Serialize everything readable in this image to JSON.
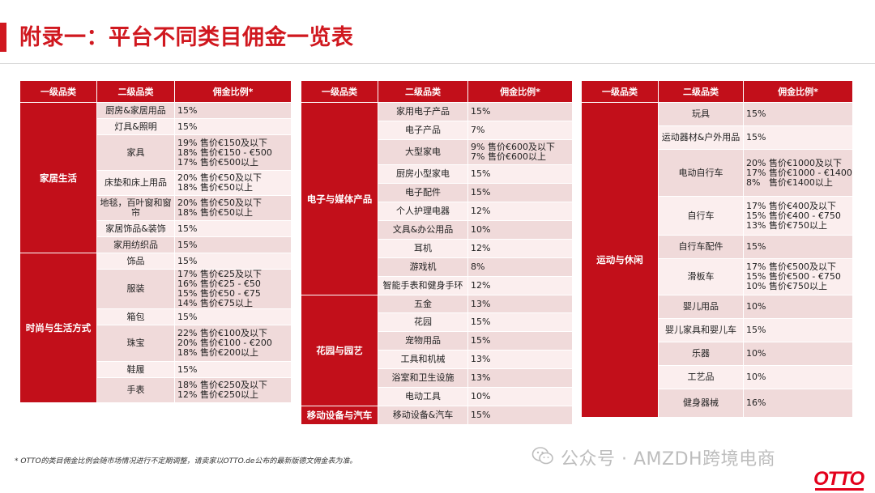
{
  "page": {
    "title": "附录一：平台不同类目佣金一览表",
    "footnote": "* OTTO的类目佣金比例会随市场情况进行不定期调整，请卖家以OTTO.de公布的最新版德文佣金表为准。",
    "watermark": "公众号 · AMZDH跨境电商",
    "brand_logo": "OTTO",
    "accent_color": "#c20f1a"
  },
  "headers": [
    "一级品类",
    "二级品类",
    "佣金比例*"
  ],
  "tables": [
    {
      "groups": [
        {
          "name": "家居生活",
          "rows": [
            {
              "sub": "厨房&家居用品",
              "rate": "15%"
            },
            {
              "sub": "灯具&照明",
              "rate": "15%"
            },
            {
              "sub": "家具",
              "rate": "19% 售价€150及以下\n18% 售价€150 - €500\n17% 售价€500以上"
            },
            {
              "sub": "床垫和床上用品",
              "rate": "20% 售价€50及以下\n18% 售价€50以上"
            },
            {
              "sub": "地毯，百叶窗和窗\n帘",
              "rate": "20% 售价€50及以下\n18% 售价€50以上"
            },
            {
              "sub": "家居饰品&装饰",
              "rate": "15%"
            },
            {
              "sub": "家用纺织品",
              "rate": "15%"
            }
          ]
        },
        {
          "name": "时尚与生活方式",
          "rows": [
            {
              "sub": "饰品",
              "rate": "15%"
            },
            {
              "sub": "服装",
              "rate": "17% 售价€25及以下\n16% 售价€25 - €50\n15% 售价€50 - €75\n14% 售价€75以上"
            },
            {
              "sub": "箱包",
              "rate": "15%"
            },
            {
              "sub": "珠宝",
              "rate": "22% 售价€100及以下\n20% 售价€100 - €200\n18% 售价€200以上"
            },
            {
              "sub": "鞋履",
              "rate": "15%"
            },
            {
              "sub": "手表",
              "rate": "18% 售价€250及以下\n12% 售价€250以上"
            }
          ]
        }
      ]
    },
    {
      "groups": [
        {
          "name": "电子与媒体产品",
          "rows": [
            {
              "sub": "家用电子产品",
              "rate": "15%"
            },
            {
              "sub": "电子产品",
              "rate": "7%"
            },
            {
              "sub": "大型家电",
              "rate": "9% 售价€600及以下\n7% 售价€600以上"
            },
            {
              "sub": "厨房小型家电",
              "rate": "15%"
            },
            {
              "sub": "电子配件",
              "rate": "15%"
            },
            {
              "sub": "个人护理电器",
              "rate": "12%"
            },
            {
              "sub": "文具&办公用品",
              "rate": "10%"
            },
            {
              "sub": "耳机",
              "rate": "12%"
            },
            {
              "sub": "游戏机",
              "rate": "8%"
            },
            {
              "sub": "智能手表和健身手环",
              "rate": "12%"
            }
          ]
        },
        {
          "name": "花园与园艺",
          "rows": [
            {
              "sub": "五金",
              "rate": "13%"
            },
            {
              "sub": "花园",
              "rate": "15%"
            },
            {
              "sub": "宠物用品",
              "rate": "15%"
            },
            {
              "sub": "工具和机械",
              "rate": "13%"
            },
            {
              "sub": "浴室和卫生设施",
              "rate": "13%"
            },
            {
              "sub": "电动工具",
              "rate": "10%"
            }
          ]
        },
        {
          "name": "移动设备与汽车",
          "rows": [
            {
              "sub": "移动设备&汽车",
              "rate": "15%"
            }
          ]
        }
      ]
    },
    {
      "groups": [
        {
          "name": "运动与休闲",
          "rows": [
            {
              "sub": "玩具",
              "rate": "15%"
            },
            {
              "sub": "运动器材&户外用品",
              "rate": "15%"
            },
            {
              "sub": "电动自行车",
              "rate": "20% 售价€1000及以下\n17% 售价€1000 - €1400\n8%   售价€1400以上"
            },
            {
              "sub": "自行车",
              "rate": "17% 售价€400及以下\n15% 售价€400 - €750\n13% 售价€750以上"
            },
            {
              "sub": "自行车配件",
              "rate": "15%"
            },
            {
              "sub": "滑板车",
              "rate": "17% 售价€500及以下\n15% 售价€500 - €750\n10% 售价€750以上"
            },
            {
              "sub": "婴儿用品",
              "rate": "10%"
            },
            {
              "sub": "婴儿家具和婴儿车",
              "rate": "15%"
            },
            {
              "sub": "乐器",
              "rate": "10%"
            },
            {
              "sub": "工艺品",
              "rate": "10%"
            },
            {
              "sub": "健身器械",
              "rate": "16%"
            }
          ]
        }
      ]
    }
  ]
}
